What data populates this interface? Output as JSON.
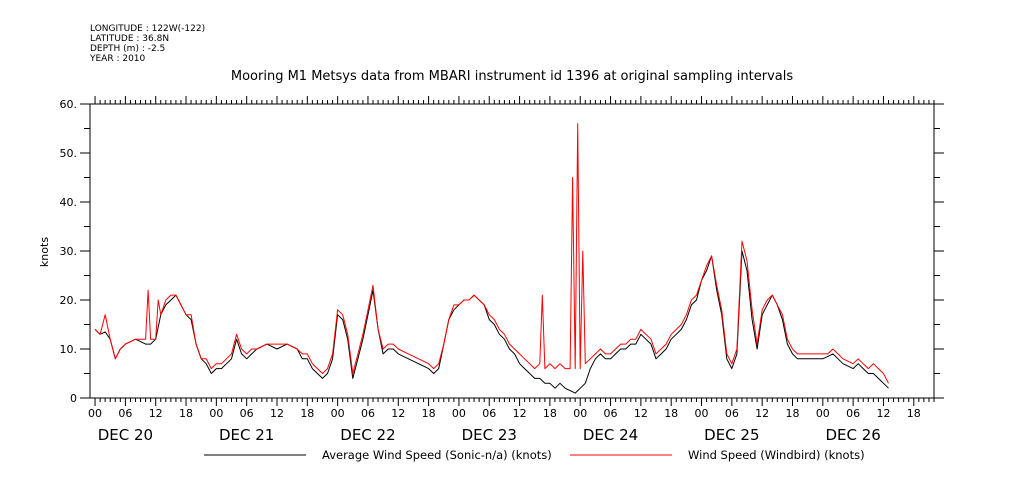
{
  "header": {
    "longitude": "LONGITUDE : 122W(-122)",
    "latitude": "LATITUDE : 36.8N",
    "depth": "DEPTH (m) : -2.5",
    "year": "YEAR : 2010"
  },
  "chart_data": {
    "type": "line",
    "title": "Mooring M1 Metsys data from MBARI instrument id 1396 at original sampling intervals",
    "ylabel": "knots",
    "xlabel": "",
    "ylim": [
      0,
      60
    ],
    "xlim_hours": [
      -1,
      166
    ],
    "y_ticks": [
      "0",
      "10.",
      "20.",
      "30.",
      "40.",
      "50.",
      "60."
    ],
    "y_tick_values": [
      0,
      10,
      20,
      30,
      40,
      50,
      60
    ],
    "x_hour_ticks": [
      "00",
      "06",
      "12",
      "18",
      "00",
      "06",
      "12",
      "18",
      "00",
      "06",
      "12",
      "18",
      "00",
      "06",
      "12",
      "18",
      "00",
      "06",
      "12",
      "18",
      "00",
      "06",
      "12",
      "18",
      "00",
      "06",
      "12",
      "18"
    ],
    "x_day_labels": [
      "DEC 20",
      "DEC 21",
      "DEC 22",
      "DEC 23",
      "DEC 24",
      "DEC 25",
      "DEC 26"
    ],
    "grid": false,
    "legend_position": "bottom",
    "series": [
      {
        "name": "Average Wind Speed (Sonic-n/a) (knots)",
        "color": "#000000",
        "points": [
          [
            0,
            14
          ],
          [
            1,
            13
          ],
          [
            2,
            13.5
          ],
          [
            3,
            12
          ],
          [
            4,
            8
          ],
          [
            5,
            10
          ],
          [
            6,
            11
          ],
          [
            8,
            12
          ],
          [
            9,
            11.5
          ],
          [
            10,
            11
          ],
          [
            11,
            11
          ],
          [
            12,
            12
          ],
          [
            13,
            17
          ],
          [
            14,
            19
          ],
          [
            15,
            20
          ],
          [
            16,
            21
          ],
          [
            17,
            19
          ],
          [
            18,
            17
          ],
          [
            19,
            16
          ],
          [
            20,
            11
          ],
          [
            21,
            8
          ],
          [
            22,
            7
          ],
          [
            23,
            5
          ],
          [
            24,
            6
          ],
          [
            25,
            6
          ],
          [
            26,
            7
          ],
          [
            27,
            8
          ],
          [
            28,
            12
          ],
          [
            29,
            9
          ],
          [
            30,
            8
          ],
          [
            31,
            9
          ],
          [
            32,
            10
          ],
          [
            34,
            11
          ],
          [
            36,
            10
          ],
          [
            38,
            11
          ],
          [
            40,
            10
          ],
          [
            41,
            8
          ],
          [
            42,
            8
          ],
          [
            43,
            6
          ],
          [
            44,
            5
          ],
          [
            45,
            4
          ],
          [
            46,
            5
          ],
          [
            47,
            8
          ],
          [
            48,
            17
          ],
          [
            49,
            16
          ],
          [
            50,
            12
          ],
          [
            51,
            4
          ],
          [
            52,
            8
          ],
          [
            53,
            12
          ],
          [
            54,
            17
          ],
          [
            55,
            22
          ],
          [
            56,
            14
          ],
          [
            57,
            9
          ],
          [
            58,
            10
          ],
          [
            59,
            10
          ],
          [
            60,
            9
          ],
          [
            62,
            8
          ],
          [
            64,
            7
          ],
          [
            66,
            6
          ],
          [
            67,
            5
          ],
          [
            68,
            6
          ],
          [
            69,
            11
          ],
          [
            70,
            16
          ],
          [
            71,
            18
          ],
          [
            72,
            19
          ],
          [
            73,
            20
          ],
          [
            74,
            20
          ],
          [
            75,
            21
          ],
          [
            76,
            20
          ],
          [
            77,
            19
          ],
          [
            78,
            16
          ],
          [
            79,
            15
          ],
          [
            80,
            13
          ],
          [
            81,
            12
          ],
          [
            82,
            10
          ],
          [
            83,
            9
          ],
          [
            84,
            7
          ],
          [
            85,
            6
          ],
          [
            86,
            5
          ],
          [
            87,
            4
          ],
          [
            88,
            4
          ],
          [
            89,
            3
          ],
          [
            90,
            3
          ],
          [
            91,
            2
          ],
          [
            92,
            3
          ],
          [
            93,
            2
          ],
          [
            94,
            1.5
          ],
          [
            95,
            1
          ],
          [
            96,
            2
          ],
          [
            97,
            3
          ],
          [
            98,
            6
          ],
          [
            99,
            8
          ],
          [
            100,
            9
          ],
          [
            101,
            8
          ],
          [
            102,
            8
          ],
          [
            103,
            9
          ],
          [
            104,
            10
          ],
          [
            105,
            10
          ],
          [
            106,
            11
          ],
          [
            107,
            11
          ],
          [
            108,
            13
          ],
          [
            109,
            12
          ],
          [
            110,
            11
          ],
          [
            111,
            8
          ],
          [
            112,
            9
          ],
          [
            113,
            10
          ],
          [
            114,
            12
          ],
          [
            115,
            13
          ],
          [
            116,
            14
          ],
          [
            117,
            16
          ],
          [
            118,
            19
          ],
          [
            119,
            20
          ],
          [
            120,
            24
          ],
          [
            121,
            26
          ],
          [
            122,
            29
          ],
          [
            123,
            22
          ],
          [
            124,
            17
          ],
          [
            125,
            8
          ],
          [
            126,
            6
          ],
          [
            127,
            9
          ],
          [
            128,
            30
          ],
          [
            129,
            26
          ],
          [
            130,
            16
          ],
          [
            131,
            10
          ],
          [
            132,
            17
          ],
          [
            133,
            19
          ],
          [
            134,
            21
          ],
          [
            135,
            19
          ],
          [
            136,
            16
          ],
          [
            137,
            11
          ],
          [
            138,
            9
          ],
          [
            139,
            8
          ],
          [
            140,
            8
          ],
          [
            142,
            8
          ],
          [
            144,
            8
          ],
          [
            145,
            8.5
          ],
          [
            146,
            9
          ],
          [
            147,
            8
          ],
          [
            148,
            7
          ],
          [
            150,
            6
          ],
          [
            151,
            7
          ],
          [
            152,
            6
          ],
          [
            153,
            5
          ],
          [
            154,
            5
          ],
          [
            155,
            4
          ],
          [
            156,
            3
          ],
          [
            157,
            2
          ]
        ]
      },
      {
        "name": "Wind Speed (Windbird) (knots)",
        "color": "#ff0000",
        "points": [
          [
            0,
            14
          ],
          [
            1,
            13
          ],
          [
            2,
            17
          ],
          [
            3,
            12
          ],
          [
            4,
            8
          ],
          [
            5,
            10
          ],
          [
            6,
            11
          ],
          [
            8,
            12
          ],
          [
            9,
            12
          ],
          [
            10,
            12
          ],
          [
            10.5,
            22
          ],
          [
            11,
            12
          ],
          [
            12,
            12
          ],
          [
            12.5,
            20
          ],
          [
            13,
            17
          ],
          [
            14,
            20
          ],
          [
            15,
            21
          ],
          [
            16,
            21
          ],
          [
            17,
            19
          ],
          [
            18,
            17
          ],
          [
            19,
            17
          ],
          [
            20,
            11
          ],
          [
            21,
            8
          ],
          [
            22,
            8
          ],
          [
            23,
            6
          ],
          [
            24,
            7
          ],
          [
            25,
            7
          ],
          [
            26,
            8
          ],
          [
            27,
            9
          ],
          [
            28,
            13
          ],
          [
            29,
            10
          ],
          [
            30,
            9
          ],
          [
            31,
            10
          ],
          [
            32,
            10
          ],
          [
            34,
            11
          ],
          [
            36,
            11
          ],
          [
            38,
            11
          ],
          [
            40,
            10
          ],
          [
            41,
            9
          ],
          [
            42,
            9
          ],
          [
            43,
            7
          ],
          [
            44,
            6
          ],
          [
            45,
            5
          ],
          [
            46,
            6
          ],
          [
            47,
            9
          ],
          [
            48,
            18
          ],
          [
            49,
            17
          ],
          [
            50,
            13
          ],
          [
            51,
            5
          ],
          [
            52,
            9
          ],
          [
            53,
            13
          ],
          [
            54,
            18
          ],
          [
            55,
            23
          ],
          [
            56,
            14
          ],
          [
            57,
            10
          ],
          [
            58,
            11
          ],
          [
            59,
            11
          ],
          [
            60,
            10
          ],
          [
            62,
            9
          ],
          [
            64,
            8
          ],
          [
            66,
            7
          ],
          [
            67,
            6
          ],
          [
            68,
            7
          ],
          [
            69,
            11
          ],
          [
            70,
            16
          ],
          [
            71,
            19
          ],
          [
            72,
            19
          ],
          [
            73,
            20
          ],
          [
            74,
            20
          ],
          [
            75,
            21
          ],
          [
            76,
            20
          ],
          [
            77,
            19
          ],
          [
            78,
            17
          ],
          [
            79,
            16
          ],
          [
            80,
            14
          ],
          [
            81,
            13
          ],
          [
            82,
            11
          ],
          [
            83,
            10
          ],
          [
            84,
            9
          ],
          [
            85,
            8
          ],
          [
            86,
            7
          ],
          [
            87,
            6
          ],
          [
            88,
            7
          ],
          [
            88.5,
            21
          ],
          [
            89,
            6
          ],
          [
            90,
            7
          ],
          [
            91,
            6
          ],
          [
            92,
            7
          ],
          [
            93,
            6
          ],
          [
            94,
            6
          ],
          [
            94.5,
            45
          ],
          [
            95,
            6
          ],
          [
            95.5,
            56
          ],
          [
            96,
            6
          ],
          [
            96.5,
            30
          ],
          [
            97,
            7
          ],
          [
            98,
            8
          ],
          [
            99,
            9
          ],
          [
            100,
            10
          ],
          [
            101,
            9
          ],
          [
            102,
            9
          ],
          [
            103,
            10
          ],
          [
            104,
            11
          ],
          [
            105,
            11
          ],
          [
            106,
            12
          ],
          [
            107,
            12
          ],
          [
            108,
            14
          ],
          [
            109,
            13
          ],
          [
            110,
            12
          ],
          [
            111,
            9
          ],
          [
            112,
            10
          ],
          [
            113,
            11
          ],
          [
            114,
            13
          ],
          [
            115,
            14
          ],
          [
            116,
            15
          ],
          [
            117,
            17
          ],
          [
            118,
            20
          ],
          [
            119,
            21
          ],
          [
            120,
            24
          ],
          [
            121,
            27
          ],
          [
            122,
            29
          ],
          [
            123,
            23
          ],
          [
            124,
            18
          ],
          [
            125,
            9
          ],
          [
            126,
            7
          ],
          [
            127,
            10
          ],
          [
            128,
            32
          ],
          [
            129,
            28
          ],
          [
            130,
            18
          ],
          [
            131,
            11
          ],
          [
            132,
            18
          ],
          [
            133,
            20
          ],
          [
            134,
            21
          ],
          [
            135,
            19
          ],
          [
            136,
            17
          ],
          [
            137,
            12
          ],
          [
            138,
            10
          ],
          [
            139,
            9
          ],
          [
            140,
            9
          ],
          [
            142,
            9
          ],
          [
            144,
            9
          ],
          [
            145,
            9
          ],
          [
            146,
            10
          ],
          [
            147,
            9
          ],
          [
            148,
            8
          ],
          [
            150,
            7
          ],
          [
            151,
            8
          ],
          [
            152,
            7
          ],
          [
            153,
            6
          ],
          [
            154,
            7
          ],
          [
            155,
            6
          ],
          [
            156,
            5
          ],
          [
            157,
            3
          ]
        ]
      }
    ]
  }
}
